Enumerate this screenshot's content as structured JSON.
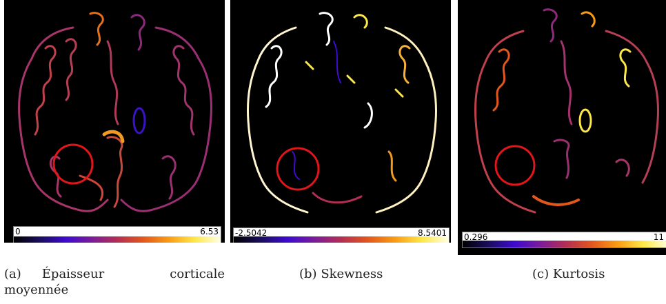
{
  "colormap": [
    "#000000",
    "#1a0d5c",
    "#3d0ad0",
    "#7a1c9a",
    "#b42e54",
    "#e3571c",
    "#f99c14",
    "#fde84a",
    "#ffffe6"
  ],
  "panels": [
    {
      "colorbar_min": "0",
      "colorbar_max": "6.53",
      "caption_label": "(a)",
      "caption_title": "Épaisseur corticale moyennée"
    },
    {
      "colorbar_min": "-2.5042",
      "colorbar_max": "8.5401",
      "caption_label": "(b)",
      "caption_title": "Skewness"
    },
    {
      "colorbar_min": "0.296",
      "colorbar_max": "11",
      "caption_label": "(c)",
      "caption_title": "Kurtosis"
    }
  ],
  "highlight_color": "#e0161b"
}
